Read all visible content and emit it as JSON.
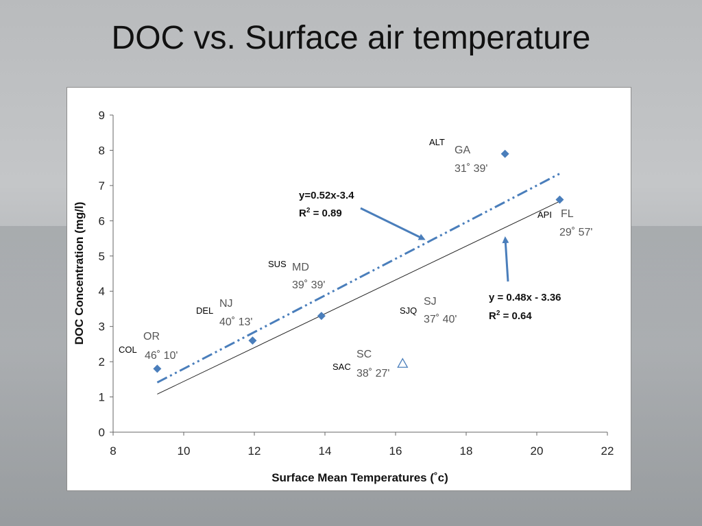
{
  "slide": {
    "title": "DOC vs. Surface air temperature"
  },
  "chart_data": {
    "type": "scatter",
    "xlabel": "Surface Mean Temperatures (˚c)",
    "ylabel": "DOC Concentration (mg/l)",
    "xlim": [
      8,
      22
    ],
    "ylim": [
      0,
      9
    ],
    "x_ticks": [
      "8",
      "10",
      "12",
      "14",
      "16",
      "18",
      "20",
      "22"
    ],
    "y_ticks": [
      "0",
      "1",
      "2",
      "3",
      "4",
      "5",
      "6",
      "7",
      "8",
      "9"
    ],
    "grid": false,
    "series": [
      {
        "marker": "diamond",
        "color": "#4a7ebb",
        "points": [
          {
            "x": 9.25,
            "y": 1.8,
            "code": "COL",
            "state": "OR",
            "latitude": "46˚ 10'"
          },
          {
            "x": 11.95,
            "y": 2.6,
            "code": "DEL",
            "state": "NJ",
            "latitude": "40˚ 13'"
          },
          {
            "x": 13.9,
            "y": 3.3,
            "code": "SUS",
            "state": "MD",
            "latitude": "39˚ 39'"
          },
          {
            "x": 19.1,
            "y": 7.9,
            "code": "ALT",
            "state": "GA",
            "latitude": "31˚ 39'"
          },
          {
            "x": 20.65,
            "y": 6.6,
            "code": "API",
            "state": "FL",
            "latitude": "29˚ 57'"
          },
          {
            "x": null,
            "y": null,
            "code": "SJQ",
            "state": "SJ",
            "latitude": "37˚ 40'"
          }
        ]
      },
      {
        "marker": "open-triangle",
        "color": "#4a7ebb",
        "points": [
          {
            "x": 16.2,
            "y": 1.95,
            "code": "SAC",
            "state": "SC",
            "latitude": "38˚ 27'"
          }
        ]
      }
    ],
    "trendlines": [
      {
        "style": "dash-dot",
        "color": "#4a7ebb",
        "x_range": [
          9.25,
          20.65
        ],
        "slope": 0.52,
        "intercept": -3.4,
        "equation": "y=0.52x-3.4",
        "r2_label": "R",
        "r2_sup": "2",
        "r2_value": " = 0.89"
      },
      {
        "style": "solid",
        "color": "#222222",
        "x_range": [
          9.25,
          20.65
        ],
        "slope": 0.48,
        "intercept": -3.36,
        "equation": "y = 0.48x - 3.36",
        "r2_label": "R",
        "r2_sup": "2",
        "r2_value": " = 0.64"
      }
    ]
  }
}
